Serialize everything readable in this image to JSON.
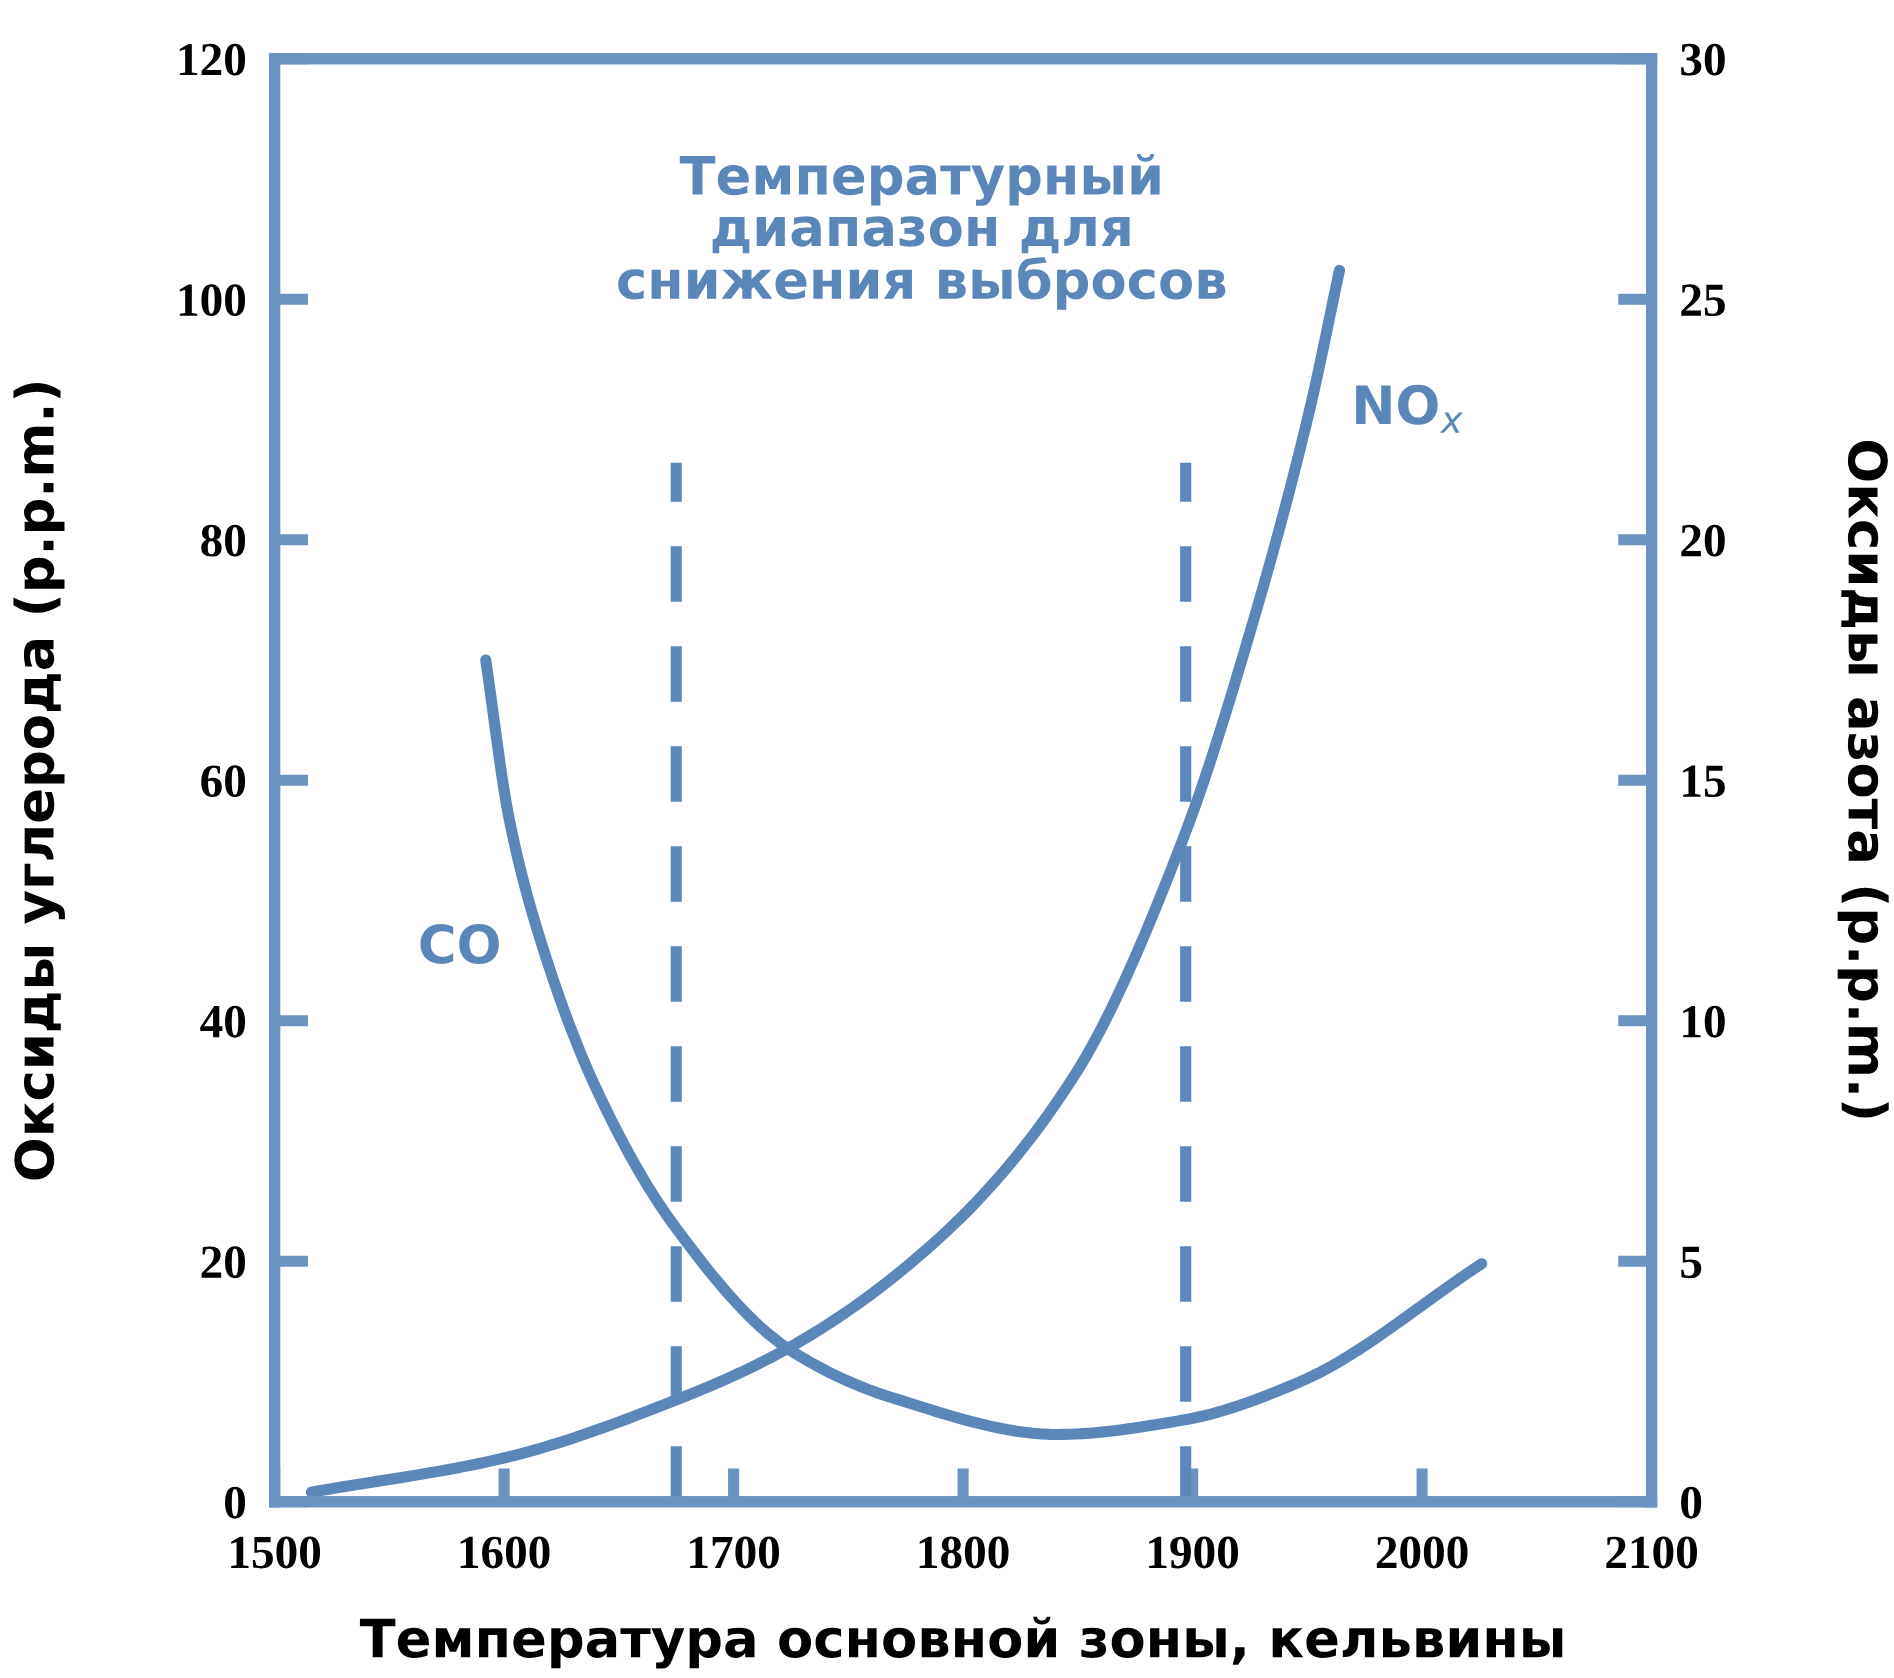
{
  "chart_data": {
    "type": "line",
    "xlabel": "Температура основной зоны, кельвины",
    "ylabel": "Оксиды углерода (p.p.m.)",
    "y2label": "Оксиды азота (p.p.m.)",
    "xlim": [
      1500,
      2100
    ],
    "xticks": [
      1500,
      1600,
      1700,
      1800,
      1900,
      2000,
      2100
    ],
    "ylim": [
      0,
      120
    ],
    "yticks": [
      0,
      20,
      40,
      60,
      80,
      100,
      120
    ],
    "y2lim": [
      0,
      30
    ],
    "y2ticks": [
      0,
      5,
      10,
      15,
      20,
      25,
      30
    ],
    "grid": false,
    "legend": false,
    "marker": "none",
    "line_style": "solid",
    "series": [
      {
        "name": "CO",
        "color": "#5b87b8",
        "x": [
          1592,
          1602,
          1617,
          1641,
          1674,
          1724,
          1770,
          1841,
          1896,
          1947,
          2026
        ],
        "values": [
          70,
          57,
          46,
          34,
          23,
          12.7,
          8.6,
          5.6,
          6.8,
          10,
          19.8
        ]
      },
      {
        "name": "NO$_{x}$",
        "color": "#5b87b8",
        "axis": "y2",
        "x": [
          1516,
          1599,
          1674,
          1724,
          1790,
          1849,
          1896,
          1927,
          1951,
          1964
        ],
        "values": [
          0.2,
          0.9,
          2.1,
          3.2,
          5.5,
          8.9,
          13.8,
          18.4,
          22.7,
          25.6
        ]
      }
    ],
    "ref_lines": [
      {
        "axis": "x",
        "value": 1675,
        "color": "#5b87b8",
        "line_style": "dashed"
      },
      {
        "axis": "x",
        "value": 1897,
        "color": "#5b87b8",
        "line_style": "dashed"
      }
    ],
    "annotations": [
      "Температурный\nдиапазон для\nснижения выбросов"
    ]
  }
}
